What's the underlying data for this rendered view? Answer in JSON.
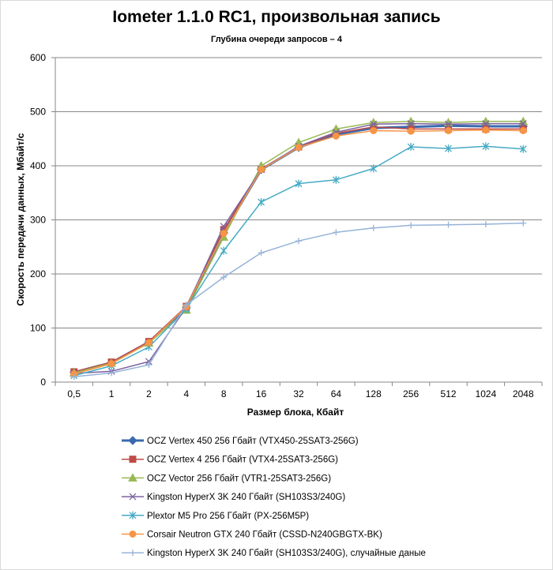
{
  "chart_data": {
    "type": "line",
    "title": "Iometer 1.1.0 RC1, произвольная запись",
    "subtitle": "Глубина очереди запросов – 4",
    "xlabel": "Размер блока, Кбайт",
    "ylabel": "Скорость передачи данных, Мбайт/с",
    "categories": [
      "0,5",
      "1",
      "2",
      "4",
      "8",
      "16",
      "32",
      "64",
      "128",
      "256",
      "512",
      "1024",
      "2048"
    ],
    "ylim": [
      0,
      600
    ],
    "yticks": [
      "0",
      "100",
      "200",
      "300",
      "400",
      "500",
      "600"
    ],
    "grid": "horizontal",
    "legend_position": "bottom",
    "series": [
      {
        "name": "OCZ Vertex  450 256 Гбайт (VTX450-25SAT3-256G)",
        "color": "#3a6aae",
        "marker": "diamond",
        "width": 3,
        "values": [
          18,
          36,
          74,
          138,
          276,
          393,
          434,
          458,
          470,
          472,
          474,
          473,
          473
        ]
      },
      {
        "name": "OCZ Vertex  4 256 Гбайт (VTX4-25SAT3-256G)",
        "color": "#be4b48",
        "marker": "square",
        "width": 1.5,
        "values": [
          19,
          37,
          75,
          140,
          282,
          394,
          435,
          460,
          472,
          468,
          468,
          468,
          468
        ]
      },
      {
        "name": "OCZ Vector  256 Гбайт (VTR1-25SAT3-256G)",
        "color": "#98b954",
        "marker": "triangle",
        "width": 1.5,
        "values": [
          17,
          35,
          72,
          133,
          268,
          400,
          443,
          468,
          480,
          482,
          480,
          482,
          482
        ]
      },
      {
        "name": "Kingston HyperX 3K 240 Гбайт (SH103S3/240G)",
        "color": "#7d60a0",
        "marker": "x",
        "width": 1.5,
        "values": [
          16,
          20,
          38,
          138,
          288,
          393,
          436,
          462,
          477,
          478,
          477,
          478,
          478
        ]
      },
      {
        "name": "Plextor M5 Pro 256 Гбайт (PX-256M5P)",
        "color": "#46aac4",
        "marker": "star",
        "width": 1.5,
        "values": [
          12,
          30,
          65,
          135,
          243,
          333,
          367,
          374,
          395,
          435,
          432,
          436,
          431
        ]
      },
      {
        "name": "Corsair Neutron GTX 240 Гбайт (CSSD-N240GBGTX-BK)",
        "color": "#f69546",
        "marker": "circle",
        "width": 1.5,
        "values": [
          15,
          34,
          73,
          139,
          275,
          393,
          434,
          455,
          465,
          464,
          465,
          466,
          465
        ]
      },
      {
        "name": "Kingston HyperX 3K 240 Гбайт (SH103S3/240G), случайные даные",
        "color": "#95b3d7",
        "marker": "plus",
        "width": 1.5,
        "values": [
          10,
          17,
          32,
          143,
          194,
          239,
          261,
          277,
          285,
          290,
          291,
          292,
          294
        ]
      }
    ]
  }
}
